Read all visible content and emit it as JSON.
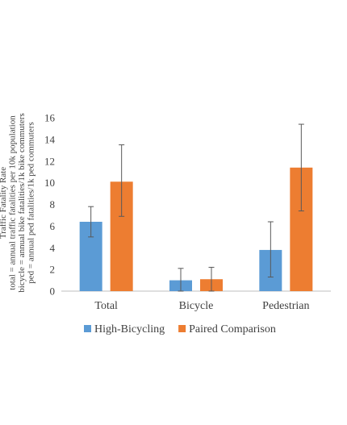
{
  "chart_data": {
    "type": "bar",
    "categories": [
      "Total",
      "Bicycle",
      "Pedestrian"
    ],
    "series": [
      {
        "name": "High-Bicycling",
        "color": "#5B9BD5",
        "values": [
          6.4,
          1.0,
          3.8
        ],
        "error_low": [
          5.0,
          0.0,
          1.3
        ],
        "error_high": [
          7.8,
          2.1,
          6.4
        ]
      },
      {
        "name": "Paired Comparison",
        "color": "#ED7D31",
        "values": [
          10.1,
          1.1,
          11.4
        ],
        "error_low": [
          6.9,
          0.0,
          7.4
        ],
        "error_high": [
          13.5,
          2.2,
          15.4
        ]
      }
    ],
    "ylabel_lines": [
      "Traffic Fatality Rate",
      "total = annual traffic fatalities per 10k population",
      "bicycle = annual bike fatalities/1k bike commuters",
      "ped = annual ped fatalities/1k ped commuters"
    ],
    "ylim": [
      0,
      16
    ],
    "yticks": [
      0,
      2,
      4,
      6,
      8,
      10,
      12,
      14,
      16
    ],
    "grid": false,
    "legend_position": "bottom"
  }
}
